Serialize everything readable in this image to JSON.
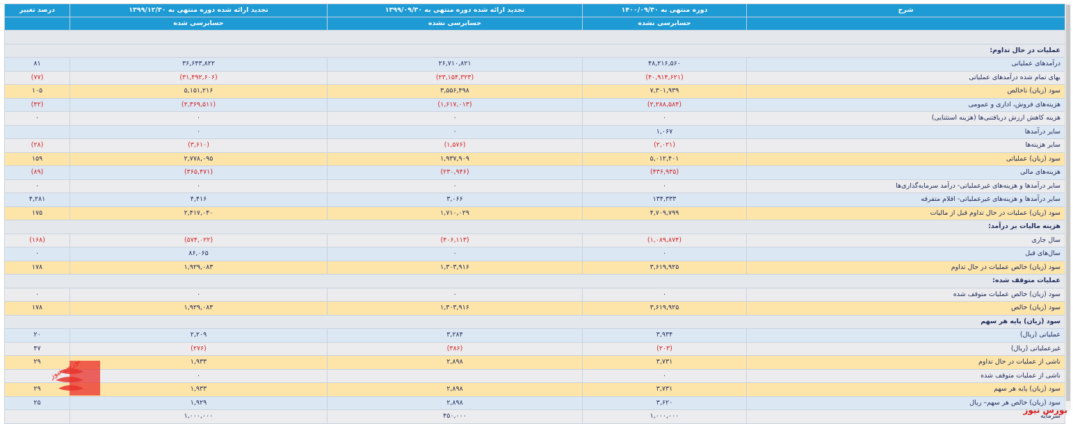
{
  "header": {
    "col_desc": "شرح",
    "col_p1": "دوره منتهی به ۱۴۰۰/۰۹/۳۰",
    "col_p2": "تجدید ارائه شده دوره منتهی به ۱۳۹۹/۰۹/۳۰",
    "col_p3": "تجدید ارائه شده دوره منتهی به ۱۳۹۹/۱۲/۳۰",
    "col_change": "درصد تغییر",
    "sub_p1": "حسابرسی نشده",
    "sub_p2": "حسابرسی نشده",
    "sub_p3": "حسابرسی شده"
  },
  "rows": [
    {
      "type": "section",
      "label": ""
    },
    {
      "type": "section",
      "label": "عملیات در حال تداوم:"
    },
    {
      "type": "a",
      "label": "درآمدهای عملیاتی",
      "v1": "۴۸,۲۱۶,۵۶۰",
      "v2": "۲۶,۷۱۰,۸۲۱",
      "v3": "۳۶,۶۴۳,۸۲۲",
      "ch": "۸۱"
    },
    {
      "type": "b",
      "label": "بهای تمام شده درآمدهای عملیاتی",
      "v1": "(۴۰,۹۱۴,۶۲۱)",
      "v2": "(۲۳,۱۵۴,۳۲۳)",
      "v3": "(۳۱,۴۹۲,۶۰۶)",
      "ch": "(۷۷)"
    },
    {
      "type": "y",
      "label": "سود (زیان) ناخالص",
      "v1": "۷,۳۰۱,۹۳۹",
      "v2": "۳,۵۵۶,۴۹۸",
      "v3": "۵,۱۵۱,۲۱۶",
      "ch": "۱۰۵"
    },
    {
      "type": "a",
      "label": "هزینه‌های فروش، اداری و عمومی",
      "v1": "(۲,۲۸۸,۵۸۴)",
      "v2": "(۱,۶۱۷,۰۱۳)",
      "v3": "(۲,۳۶۹,۵۱۱)",
      "ch": "(۴۲)"
    },
    {
      "type": "b",
      "label": "هزینه کاهش ارزش دریافتنی‌ها (هزینه استثنایی)",
      "v1": "۰",
      "v2": "۰",
      "v3": "۰",
      "ch": "۰"
    },
    {
      "type": "a",
      "label": "سایر درآمدها",
      "v1": "۱,۰۶۷",
      "v2": "۰",
      "v3": "۰",
      "ch": ""
    },
    {
      "type": "b",
      "label": "سایر هزینه‌ها",
      "v1": "(۲,۰۲۱)",
      "v2": "(۱,۵۷۶)",
      "v3": "(۳,۶۱۰)",
      "ch": "(۲۸)"
    },
    {
      "type": "y",
      "label": "سود (زیان) عملیاتی",
      "v1": "۵,۰۱۲,۴۰۱",
      "v2": "۱,۹۳۷,۹۰۹",
      "v3": "۲,۷۷۸,۰۹۵",
      "ch": "۱۵۹"
    },
    {
      "type": "a",
      "label": "هزینه‌های مالی",
      "v1": "(۴۳۶,۹۳۵)",
      "v2": "(۲۳۰,۹۴۶)",
      "v3": "(۳۶۵,۴۷۱)",
      "ch": "(۸۹)"
    },
    {
      "type": "b",
      "label": "سایر درآمدها و هزینه‌های غیرعملیاتی- درآمد سرمایه‌گذاری‌ها",
      "v1": "۰",
      "v2": "۰",
      "v3": "۰",
      "ch": "۰"
    },
    {
      "type": "a",
      "label": "سایر درآمدها و هزینه‌های غیرعملیاتی- اقلام متفرقه",
      "v1": "۱۳۴,۳۳۳",
      "v2": "۳,۰۶۶",
      "v3": "۴,۴۱۶",
      "ch": "۴,۲۸۱"
    },
    {
      "type": "y",
      "label": "سود (زیان) عملیات در حال تداوم قبل از مالیات",
      "v1": "۴,۷۰۹,۷۹۹",
      "v2": "۱,۷۱۰,۰۲۹",
      "v3": "۲,۴۱۷,۰۴۰",
      "ch": "۱۷۵"
    },
    {
      "type": "section",
      "label": "هزینه مالیات بر درآمد:"
    },
    {
      "type": "b",
      "label": "سال جاری",
      "v1": "(۱,۰۸۹,۸۷۴)",
      "v2": "(۴۰۶,۱۱۳)",
      "v3": "(۵۷۴,۰۲۲)",
      "ch": "(۱۶۸)"
    },
    {
      "type": "a",
      "label": "سال‌های قبل",
      "v1": "۰",
      "v2": "۰",
      "v3": "۸۶,۰۶۵",
      "ch": "۰"
    },
    {
      "type": "y",
      "label": "سود (زیان) خالص عملیات در حال تداوم",
      "v1": "۳,۶۱۹,۹۲۵",
      "v2": "۱,۳۰۳,۹۱۶",
      "v3": "۱,۹۲۹,۰۸۳",
      "ch": "۱۷۸"
    },
    {
      "type": "section",
      "label": "عملیات متوقف شده:"
    },
    {
      "type": "b",
      "label": "سود (زیان) خالص عملیات متوقف شده",
      "v1": "۰",
      "v2": "۰",
      "v3": "۰",
      "ch": "۰"
    },
    {
      "type": "y",
      "label": "سود (زیان) خالص",
      "v1": "۳,۶۱۹,۹۲۵",
      "v2": "۱,۳۰۳,۹۱۶",
      "v3": "۱,۹۲۹,۰۸۳",
      "ch": "۱۷۸"
    },
    {
      "type": "section",
      "label": "سود (زیان) پایه هر سهم"
    },
    {
      "type": "a",
      "label": "عملیاتی (ریال)",
      "v1": "۳,۹۳۴",
      "v2": "۳,۲۸۴",
      "v3": "۲,۲۰۹",
      "ch": "۲۰"
    },
    {
      "type": "b",
      "label": "غیرعملیاتی (ریال)",
      "v1": "(۲۰۳)",
      "v2": "(۳۸۶)",
      "v3": "(۲۷۶)",
      "ch": "۴۷"
    },
    {
      "type": "y",
      "label": "ناشی از عملیات در حال تداوم",
      "v1": "۳,۷۳۱",
      "v2": "۲,۸۹۸",
      "v3": "۱,۹۳۳",
      "ch": "۲۹"
    },
    {
      "type": "b",
      "label": "ناشی از عملیات متوقف شده",
      "v1": "۰",
      "v2": "",
      "v3": "۰",
      "ch": ""
    },
    {
      "type": "y",
      "label": "سود (زیان) پایه هر سهم",
      "v1": "۳,۷۳۱",
      "v2": "۲,۸۹۸",
      "v3": "۱,۹۳۳",
      "ch": "۲۹"
    },
    {
      "type": "a",
      "label": "سود (زیان) خالص هر سهم– ریال",
      "v1": "۳,۶۲۰",
      "v2": "۲,۸۹۸",
      "v3": "۱,۹۲۹",
      "ch": "۲۵"
    },
    {
      "type": "b",
      "label": "سرمایه",
      "v1": "۱,۰۰۰,۰۰۰",
      "v2": "۴۵۰,۰۰۰",
      "v3": "۱,۰۰۰,۰۰۰",
      "ch": ""
    }
  ],
  "watermark": {
    "logo_text": "بورس نیوز",
    "brand_text": "بورس نیوز"
  },
  "colors": {
    "header": "#1e9ad4",
    "row_blue": "#dbe7f3",
    "row_grey": "#ececee",
    "row_yellow": "#fde4a8",
    "negative": "#d32020"
  }
}
